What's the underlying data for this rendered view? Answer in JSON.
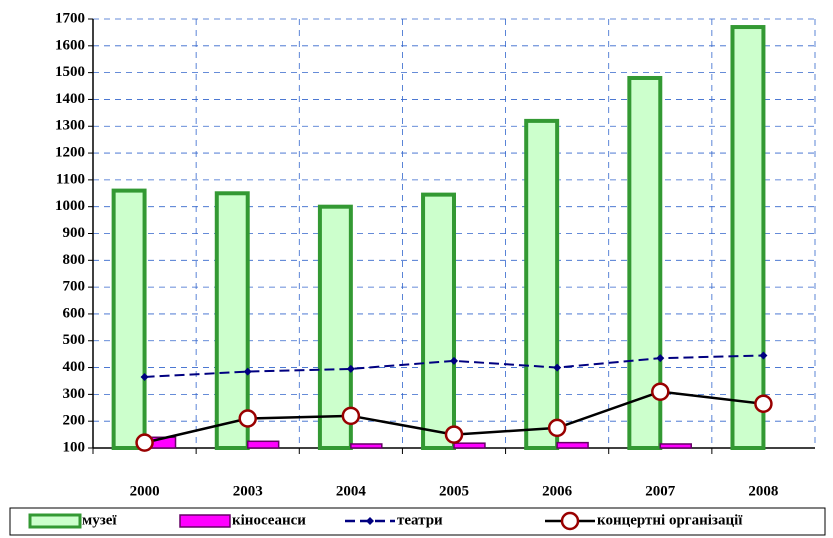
{
  "chart_data": {
    "type": "bar-line",
    "categories": [
      "2000",
      "2003",
      "2004",
      "2005",
      "2006",
      "2007",
      "2008"
    ],
    "series": [
      {
        "name": "музеї",
        "type": "bar",
        "color": "#ccffcc",
        "stroke": "#339933",
        "values": [
          1060,
          1050,
          1000,
          1045,
          1320,
          1480,
          1670
        ]
      },
      {
        "name": "кіносеанси",
        "type": "bar",
        "color": "#ff00ff",
        "stroke": "#660066",
        "values": [
          140,
          125,
          115,
          118,
          120,
          115,
          null
        ]
      },
      {
        "name": "театри",
        "type": "line",
        "color": "#000080",
        "marker": "diamond",
        "values": [
          365,
          385,
          395,
          425,
          400,
          435,
          445
        ]
      },
      {
        "name": "концертні організації",
        "type": "line",
        "color": "#000000",
        "marker": "circle",
        "marker_color": "#990000",
        "values": [
          120,
          210,
          220,
          150,
          175,
          310,
          265
        ]
      }
    ],
    "ylim": [
      100,
      1700
    ],
    "yticks": [
      100,
      200,
      300,
      400,
      500,
      600,
      700,
      800,
      900,
      1000,
      1100,
      1200,
      1300,
      1400,
      1500,
      1600,
      1700
    ],
    "grid": true,
    "legend": "bottom"
  }
}
